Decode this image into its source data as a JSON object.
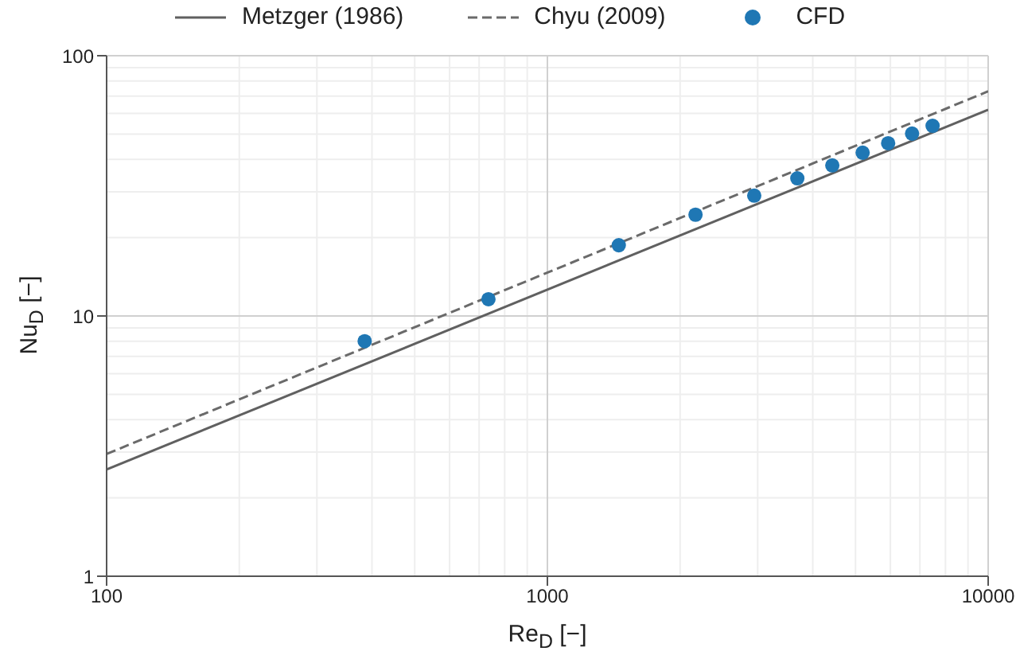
{
  "chart_data": {
    "type": "line",
    "xlabel": "Re$_{D}$ [−]",
    "ylabel": "Nu$_{D}$ [−]",
    "log": "xy",
    "grid": true,
    "legend": "top",
    "xlim": [
      100,
      10000
    ],
    "xticks": [
      100,
      1000,
      10000
    ],
    "ylim": [
      1,
      100
    ],
    "yticks": [
      1,
      10,
      100
    ],
    "series": [
      {
        "name": "Metzger (1986)",
        "type": "line",
        "line_style": "solid",
        "marker": "none",
        "color": "#606060",
        "x": [
          100,
          10000
        ],
        "values": [
          2.57,
          62
        ]
      },
      {
        "name": "Chyu (2009)",
        "type": "line",
        "line_style": "dashed",
        "marker": "none",
        "color": "#6a6a6a",
        "x": [
          100,
          10000
        ],
        "values": [
          2.95,
          73
        ]
      },
      {
        "name": "CFD",
        "type": "scatter",
        "marker": "circle",
        "color": "#1f77b4",
        "x": [
          385,
          735,
          1452,
          2168,
          2946,
          3690,
          4430,
          5190,
          5930,
          6720,
          7480
        ],
        "values": [
          8.0,
          11.6,
          18.7,
          24.5,
          29.0,
          33.8,
          37.9,
          42.4,
          46.1,
          50.2,
          53.8
        ]
      }
    ]
  }
}
